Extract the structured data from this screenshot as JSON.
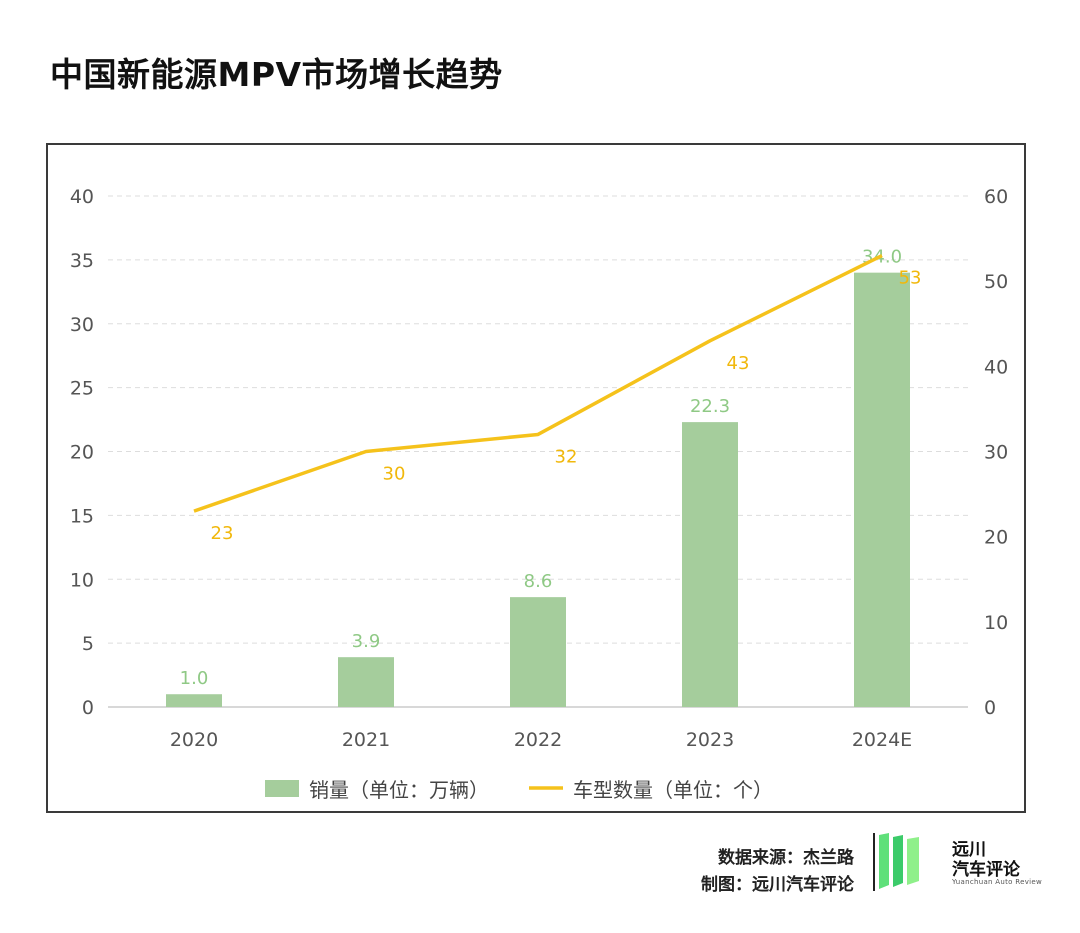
{
  "title": "中国新能源MPV市场增长趋势",
  "colors": {
    "bar": "#a5cd9c",
    "bar_label": "#8fc985",
    "line": "#f5c21b",
    "line_label": "#f1b80c",
    "axis_text": "#555555",
    "grid": "#dddddd"
  },
  "chart_data": {
    "type": "bar+line",
    "categories": [
      "2020",
      "2021",
      "2022",
      "2023",
      "2024E"
    ],
    "series": [
      {
        "name": "销量（单位：万辆）",
        "type": "bar",
        "axis": "left",
        "values": [
          1.0,
          3.9,
          8.6,
          22.3,
          34.0
        ],
        "labels": [
          "1.0",
          "3.9",
          "8.6",
          "22.3",
          "34.0"
        ]
      },
      {
        "name": "车型数量（单位：个）",
        "type": "line",
        "axis": "right",
        "values": [
          23,
          30,
          32,
          43,
          53
        ],
        "labels": [
          "23",
          "30",
          "32",
          "43",
          "53"
        ]
      }
    ],
    "y_left": {
      "range": [
        0,
        40
      ],
      "ticks": [
        "0",
        "5",
        "10",
        "15",
        "20",
        "25",
        "30",
        "35",
        "40"
      ]
    },
    "y_right": {
      "range": [
        0,
        60
      ],
      "ticks": [
        "0",
        "10",
        "20",
        "30",
        "40",
        "50",
        "60"
      ]
    },
    "grid": "horizontal-dashed",
    "legend": "bottom-center"
  },
  "footer": {
    "source": "数据来源：杰兰路",
    "maker": "制图：远川汽车评论"
  },
  "logo": {
    "cn_line1": "远川",
    "cn_line2": "汽车评论",
    "en": "Yuanchuan Auto Review"
  }
}
